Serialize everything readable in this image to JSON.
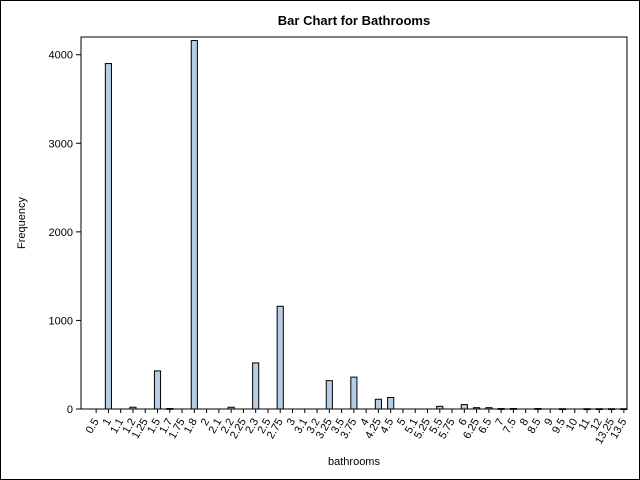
{
  "chart_data": {
    "type": "bar",
    "title": "Bar Chart for Bathrooms",
    "xlabel": "bathrooms",
    "ylabel": "Frequency",
    "ylim": [
      0,
      4200
    ],
    "yticks": [
      0,
      1000,
      2000,
      3000,
      4000
    ],
    "categories": [
      "0.5",
      "1",
      "1.1",
      "1.2",
      "1.25",
      "1.5",
      "1.7",
      "1.75",
      "1.8",
      "2",
      "2.1",
      "2.2",
      "2.25",
      "2.3",
      "2.5",
      "2.75",
      "3",
      "3.1",
      "3.2",
      "3.25",
      "3.5",
      "3.75",
      "4",
      "4.25",
      "4.5",
      "5",
      "5.1",
      "5.25",
      "5.5",
      "5.75",
      "6",
      "6.25",
      "6.5",
      "7",
      "7.5",
      "8",
      "8.5",
      "9",
      "9.5",
      "10",
      "11",
      "12",
      "13.25",
      "13.5"
    ],
    "values": [
      0,
      3900,
      0,
      20,
      0,
      430,
      5,
      0,
      4160,
      0,
      0,
      20,
      0,
      520,
      0,
      1160,
      0,
      0,
      0,
      320,
      0,
      360,
      0,
      110,
      130,
      0,
      0,
      0,
      30,
      0,
      50,
      15,
      15,
      5,
      5,
      0,
      5,
      0,
      3,
      0,
      3,
      3,
      3,
      3
    ],
    "bar_color": "#b8cce4",
    "bar_outline": "#000000",
    "grid": false
  }
}
